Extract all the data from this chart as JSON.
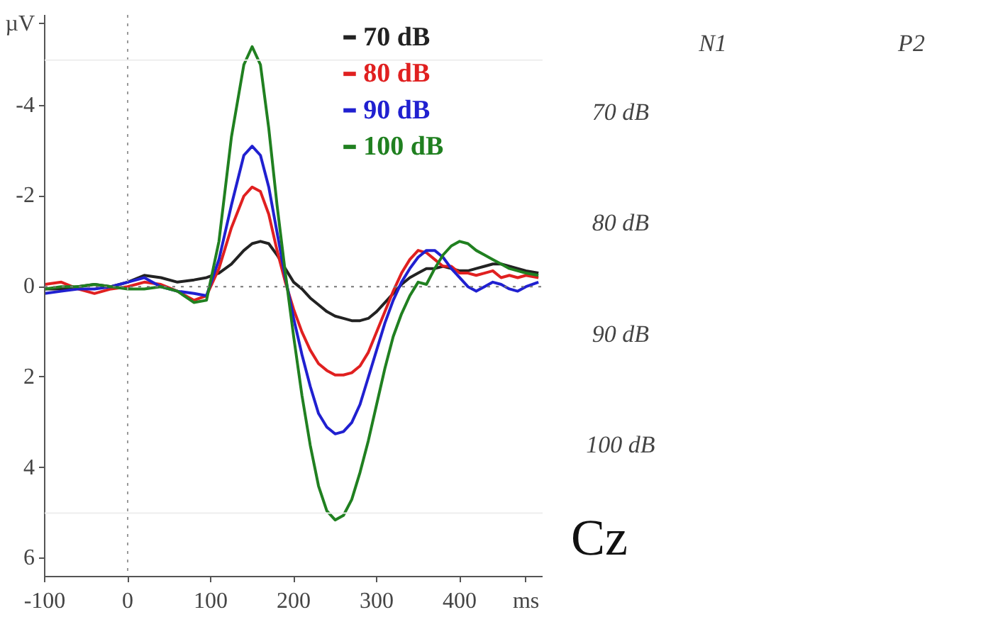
{
  "chart_data": {
    "type": "line",
    "xlim": [
      -100,
      500
    ],
    "ylim": [
      6.4,
      -6.0
    ],
    "xticks": [
      -100,
      0,
      100,
      200,
      300,
      400,
      {
        "value": 480,
        "label": "ms"
      }
    ],
    "yticks": [
      -4,
      -2,
      0,
      2,
      4,
      6,
      {
        "value": -5.8,
        "label": "µV"
      }
    ],
    "grid": false,
    "legend": "top right",
    "line_style": "solid",
    "marker": "none",
    "ref_lines": [
      {
        "axis": "y",
        "value": 0,
        "color": "#777777",
        "line_style": "dotted"
      },
      {
        "axis": "x",
        "value": 0,
        "color": "#999999",
        "line_style": "dotted"
      },
      {
        "axis": "y",
        "value": -5,
        "color": "#eeeeee",
        "line_style": "solid"
      },
      {
        "axis": "y",
        "value": 5,
        "color": "#eeeeee",
        "line_style": "solid"
      }
    ],
    "x": [
      -100,
      -80,
      -60,
      -40,
      -20,
      0,
      20,
      40,
      60,
      80,
      95,
      110,
      125,
      140,
      150,
      160,
      170,
      180,
      190,
      200,
      210,
      220,
      230,
      240,
      250,
      260,
      270,
      280,
      290,
      300,
      310,
      320,
      330,
      340,
      350,
      360,
      370,
      380,
      390,
      400,
      410,
      420,
      430,
      440,
      450,
      460,
      470,
      480,
      495
    ],
    "series": [
      {
        "name": "70 dB",
        "color": "#222222",
        "values": [
          0.05,
          0.05,
          0.0,
          -0.05,
          0.0,
          -0.1,
          -0.25,
          -0.2,
          -0.1,
          -0.15,
          -0.2,
          -0.3,
          -0.5,
          -0.8,
          -0.95,
          -1.0,
          -0.95,
          -0.7,
          -0.4,
          -0.1,
          0.05,
          0.25,
          0.4,
          0.55,
          0.65,
          0.7,
          0.75,
          0.75,
          0.7,
          0.55,
          0.35,
          0.15,
          -0.05,
          -0.2,
          -0.3,
          -0.4,
          -0.4,
          -0.45,
          -0.4,
          -0.35,
          -0.35,
          -0.4,
          -0.45,
          -0.5,
          -0.5,
          -0.45,
          -0.4,
          -0.35,
          -0.3
        ]
      },
      {
        "name": "80 dB",
        "color": "#e02020",
        "values": [
          -0.05,
          -0.1,
          0.05,
          0.15,
          0.05,
          0.0,
          -0.1,
          -0.05,
          0.1,
          0.3,
          0.2,
          -0.4,
          -1.3,
          -2.0,
          -2.2,
          -2.1,
          -1.6,
          -0.8,
          -0.1,
          0.5,
          1.0,
          1.4,
          1.7,
          1.85,
          1.95,
          1.95,
          1.9,
          1.75,
          1.45,
          1.0,
          0.55,
          0.1,
          -0.3,
          -0.6,
          -0.8,
          -0.75,
          -0.6,
          -0.45,
          -0.45,
          -0.3,
          -0.3,
          -0.25,
          -0.3,
          -0.35,
          -0.2,
          -0.25,
          -0.2,
          -0.25,
          -0.2
        ]
      },
      {
        "name": "90 dB",
        "color": "#2020d0",
        "values": [
          0.15,
          0.1,
          0.05,
          0.05,
          0.0,
          -0.1,
          -0.2,
          0.0,
          0.1,
          0.15,
          0.2,
          -0.6,
          -1.8,
          -2.9,
          -3.1,
          -2.9,
          -2.2,
          -1.2,
          -0.2,
          0.7,
          1.5,
          2.2,
          2.8,
          3.1,
          3.25,
          3.2,
          3.0,
          2.6,
          2.0,
          1.4,
          0.8,
          0.3,
          -0.1,
          -0.4,
          -0.65,
          -0.8,
          -0.8,
          -0.65,
          -0.4,
          -0.2,
          0.0,
          0.1,
          0.0,
          -0.1,
          -0.05,
          0.05,
          0.1,
          0.0,
          -0.1
        ]
      },
      {
        "name": "100 dB",
        "color": "#208020",
        "values": [
          0.05,
          0.0,
          0.0,
          -0.05,
          0.0,
          0.05,
          0.05,
          0.0,
          0.1,
          0.35,
          0.3,
          -1.0,
          -3.3,
          -4.9,
          -5.3,
          -4.9,
          -3.5,
          -1.8,
          -0.3,
          1.1,
          2.4,
          3.5,
          4.4,
          4.95,
          5.15,
          5.05,
          4.7,
          4.1,
          3.4,
          2.6,
          1.8,
          1.1,
          0.6,
          0.2,
          -0.1,
          -0.05,
          -0.4,
          -0.7,
          -0.9,
          -1.0,
          -0.95,
          -0.8,
          -0.7,
          -0.6,
          -0.5,
          -0.4,
          -0.35,
          -0.3,
          -0.25
        ]
      }
    ],
    "annotations": [
      "N1",
      "P2",
      "70 dB",
      "80 dB",
      "90 dB",
      "100 dB",
      "Cz"
    ]
  }
}
